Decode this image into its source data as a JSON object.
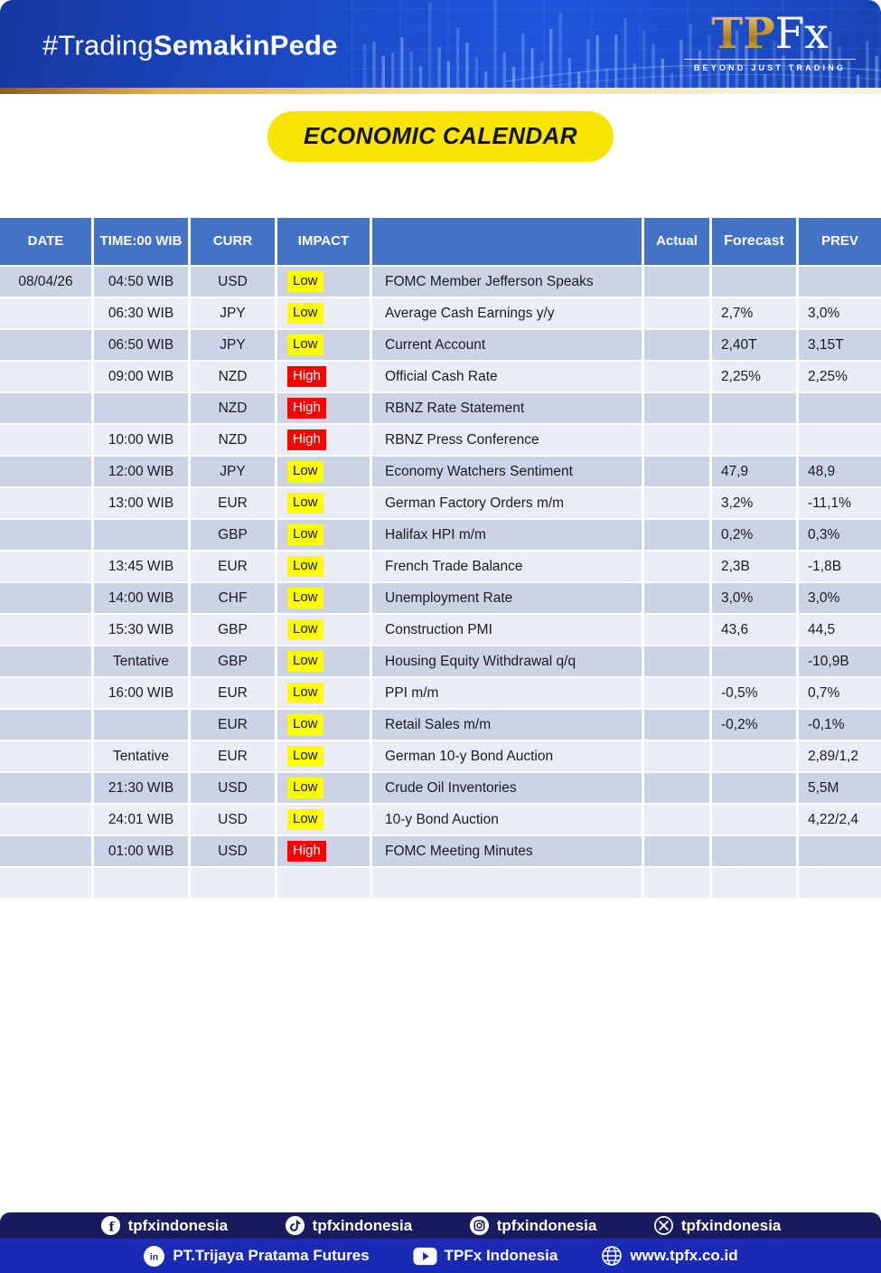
{
  "banner": {
    "hashtag_regular": "#Trading",
    "hashtag_bold": "SemakinPede",
    "logo_tp": "TP",
    "logo_fx": "Fx",
    "logo_tagline": "BEYOND JUST TRADING"
  },
  "title": "ECONOMIC CALENDAR",
  "table": {
    "headers": [
      "DATE",
      "TIME:00 WIB",
      "CURR",
      "IMPACT",
      "",
      "Actual",
      "Forecast",
      "PREV"
    ],
    "rows": [
      {
        "date": "08/04/26",
        "time": "04:50 WIB",
        "curr": "USD",
        "impact": "Low",
        "event": "FOMC Member Jefferson Speaks",
        "actual": "",
        "forecast": "",
        "prev": ""
      },
      {
        "date": "",
        "time": "06:30 WIB",
        "curr": "JPY",
        "impact": "Low",
        "event": "Average Cash Earnings y/y",
        "actual": "",
        "forecast": "2,7%",
        "prev": "3,0%"
      },
      {
        "date": "",
        "time": "06:50 WIB",
        "curr": "JPY",
        "impact": "Low",
        "event": "Current Account",
        "actual": "",
        "forecast": "2,40T",
        "prev": "3,15T"
      },
      {
        "date": "",
        "time": "09:00 WIB",
        "curr": "NZD",
        "impact": "High",
        "event": "Official Cash Rate",
        "actual": "",
        "forecast": "2,25%",
        "prev": "2,25%"
      },
      {
        "date": "",
        "time": "",
        "curr": "NZD",
        "impact": "High",
        "event": "RBNZ Rate Statement",
        "actual": "",
        "forecast": "",
        "prev": ""
      },
      {
        "date": "",
        "time": "10:00 WIB",
        "curr": "NZD",
        "impact": "High",
        "event": "RBNZ Press Conference",
        "actual": "",
        "forecast": "",
        "prev": ""
      },
      {
        "date": "",
        "time": "12:00 WIB",
        "curr": "JPY",
        "impact": "Low",
        "event": "Economy Watchers Sentiment",
        "actual": "",
        "forecast": "47,9",
        "prev": "48,9"
      },
      {
        "date": "",
        "time": "13:00 WIB",
        "curr": "EUR",
        "impact": "Low",
        "event": "German Factory Orders m/m",
        "actual": "",
        "forecast": "3,2%",
        "prev": "-11,1%"
      },
      {
        "date": "",
        "time": "",
        "curr": "GBP",
        "impact": "Low",
        "event": "Halifax HPI m/m",
        "actual": "",
        "forecast": "0,2%",
        "prev": "0,3%"
      },
      {
        "date": "",
        "time": "13:45 WIB",
        "curr": "EUR",
        "impact": "Low",
        "event": "French Trade Balance",
        "actual": "",
        "forecast": "2,3B",
        "prev": "-1,8B"
      },
      {
        "date": "",
        "time": "14:00 WIB",
        "curr": "CHF",
        "impact": "Low",
        "event": "Unemployment Rate",
        "actual": "",
        "forecast": "3,0%",
        "prev": "3,0%"
      },
      {
        "date": "",
        "time": "15:30 WIB",
        "curr": "GBP",
        "impact": "Low",
        "event": "Construction PMI",
        "actual": "",
        "forecast": "43,6",
        "prev": "44,5"
      },
      {
        "date": "",
        "time": "Tentative",
        "curr": "GBP",
        "impact": "Low",
        "event": "Housing Equity Withdrawal q/q",
        "actual": "",
        "forecast": "",
        "prev": "-10,9B"
      },
      {
        "date": "",
        "time": "16:00 WIB",
        "curr": "EUR",
        "impact": "Low",
        "event": "PPI m/m",
        "actual": "",
        "forecast": "-0,5%",
        "prev": "0,7%"
      },
      {
        "date": "",
        "time": "",
        "curr": "EUR",
        "impact": "Low",
        "event": "Retail Sales m/m",
        "actual": "",
        "forecast": "-0,2%",
        "prev": "-0,1%"
      },
      {
        "date": "",
        "time": "Tentative",
        "curr": "EUR",
        "impact": "Low",
        "event": "German 10-y Bond Auction",
        "actual": "",
        "forecast": "",
        "prev": "2,89/1,2"
      },
      {
        "date": "",
        "time": "21:30 WIB",
        "curr": "USD",
        "impact": "Low",
        "event": "Crude Oil Inventories",
        "actual": "",
        "forecast": "",
        "prev": "5,5M"
      },
      {
        "date": "",
        "time": "24:01 WIB",
        "curr": "USD",
        "impact": "Low",
        "event": "10-y Bond Auction",
        "actual": "",
        "forecast": "",
        "prev": "4,22/2,4"
      },
      {
        "date": "",
        "time": "01:00 WIB",
        "curr": "USD",
        "impact": "High",
        "event": "FOMC Meeting Minutes",
        "actual": "",
        "forecast": "",
        "prev": ""
      },
      {
        "date": "",
        "time": "",
        "curr": "",
        "impact": "",
        "event": "",
        "actual": "",
        "forecast": "",
        "prev": ""
      }
    ]
  },
  "footer": {
    "social_top": [
      {
        "icon": "facebook",
        "label": "tpfxindonesia"
      },
      {
        "icon": "tiktok",
        "label": "tpfxindonesia"
      },
      {
        "icon": "instagram",
        "label": "tpfxindonesia"
      },
      {
        "icon": "x",
        "label": "tpfxindonesia"
      }
    ],
    "social_bottom": [
      {
        "icon": "linkedin",
        "label": "PT.Trijaya Pratama Futures"
      },
      {
        "icon": "youtube",
        "label": "TPFx Indonesia"
      },
      {
        "icon": "globe",
        "label": "www.tpfx.co.id"
      }
    ]
  },
  "colors": {
    "header_blue": "#4472c4",
    "row_dark": "#cdd3e7",
    "row_light": "#eaecf6",
    "impact_low_bg": "#ffff00",
    "impact_high_bg": "#ff0000",
    "title_pill": "#f8e503",
    "banner_blue": "#1c4cc9",
    "footer_navy": "#181b5e",
    "footer_blue": "#1b2ab4",
    "gold": "#dfae52"
  }
}
